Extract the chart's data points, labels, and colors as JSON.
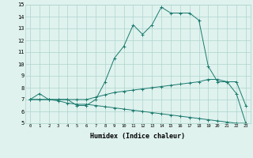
{
  "xlabel": "Humidex (Indice chaleur)",
  "x": [
    0,
    1,
    2,
    3,
    4,
    5,
    6,
    7,
    8,
    9,
    10,
    11,
    12,
    13,
    14,
    15,
    16,
    17,
    18,
    19,
    20,
    21,
    22,
    23
  ],
  "line1": [
    7.0,
    7.5,
    7.0,
    7.0,
    7.0,
    6.5,
    6.5,
    7.0,
    8.5,
    10.5,
    11.5,
    13.3,
    12.5,
    13.3,
    14.8,
    14.3,
    14.3,
    14.3,
    13.7,
    9.8,
    8.5,
    8.5,
    8.5,
    6.5
  ],
  "line2": [
    7.0,
    7.0,
    7.0,
    7.0,
    7.0,
    7.0,
    7.0,
    7.2,
    7.4,
    7.6,
    7.7,
    7.8,
    7.9,
    8.0,
    8.1,
    8.2,
    8.3,
    8.4,
    8.5,
    8.7,
    8.7,
    8.5,
    7.5,
    5.0
  ],
  "line3": [
    7.0,
    7.0,
    7.0,
    6.9,
    6.7,
    6.6,
    6.6,
    6.5,
    6.4,
    6.3,
    6.2,
    6.1,
    6.0,
    5.9,
    5.8,
    5.7,
    5.6,
    5.5,
    5.4,
    5.3,
    5.2,
    5.1,
    5.0,
    5.0
  ],
  "color": "#1a7a6e",
  "bg_color": "#dff2ee",
  "grid_color": "#aed4cc",
  "ylim": [
    5,
    15
  ],
  "xlim_min": -0.5,
  "xlim_max": 23.5,
  "yticks": [
    5,
    6,
    7,
    8,
    9,
    10,
    11,
    12,
    13,
    14,
    15
  ],
  "marker": "+"
}
